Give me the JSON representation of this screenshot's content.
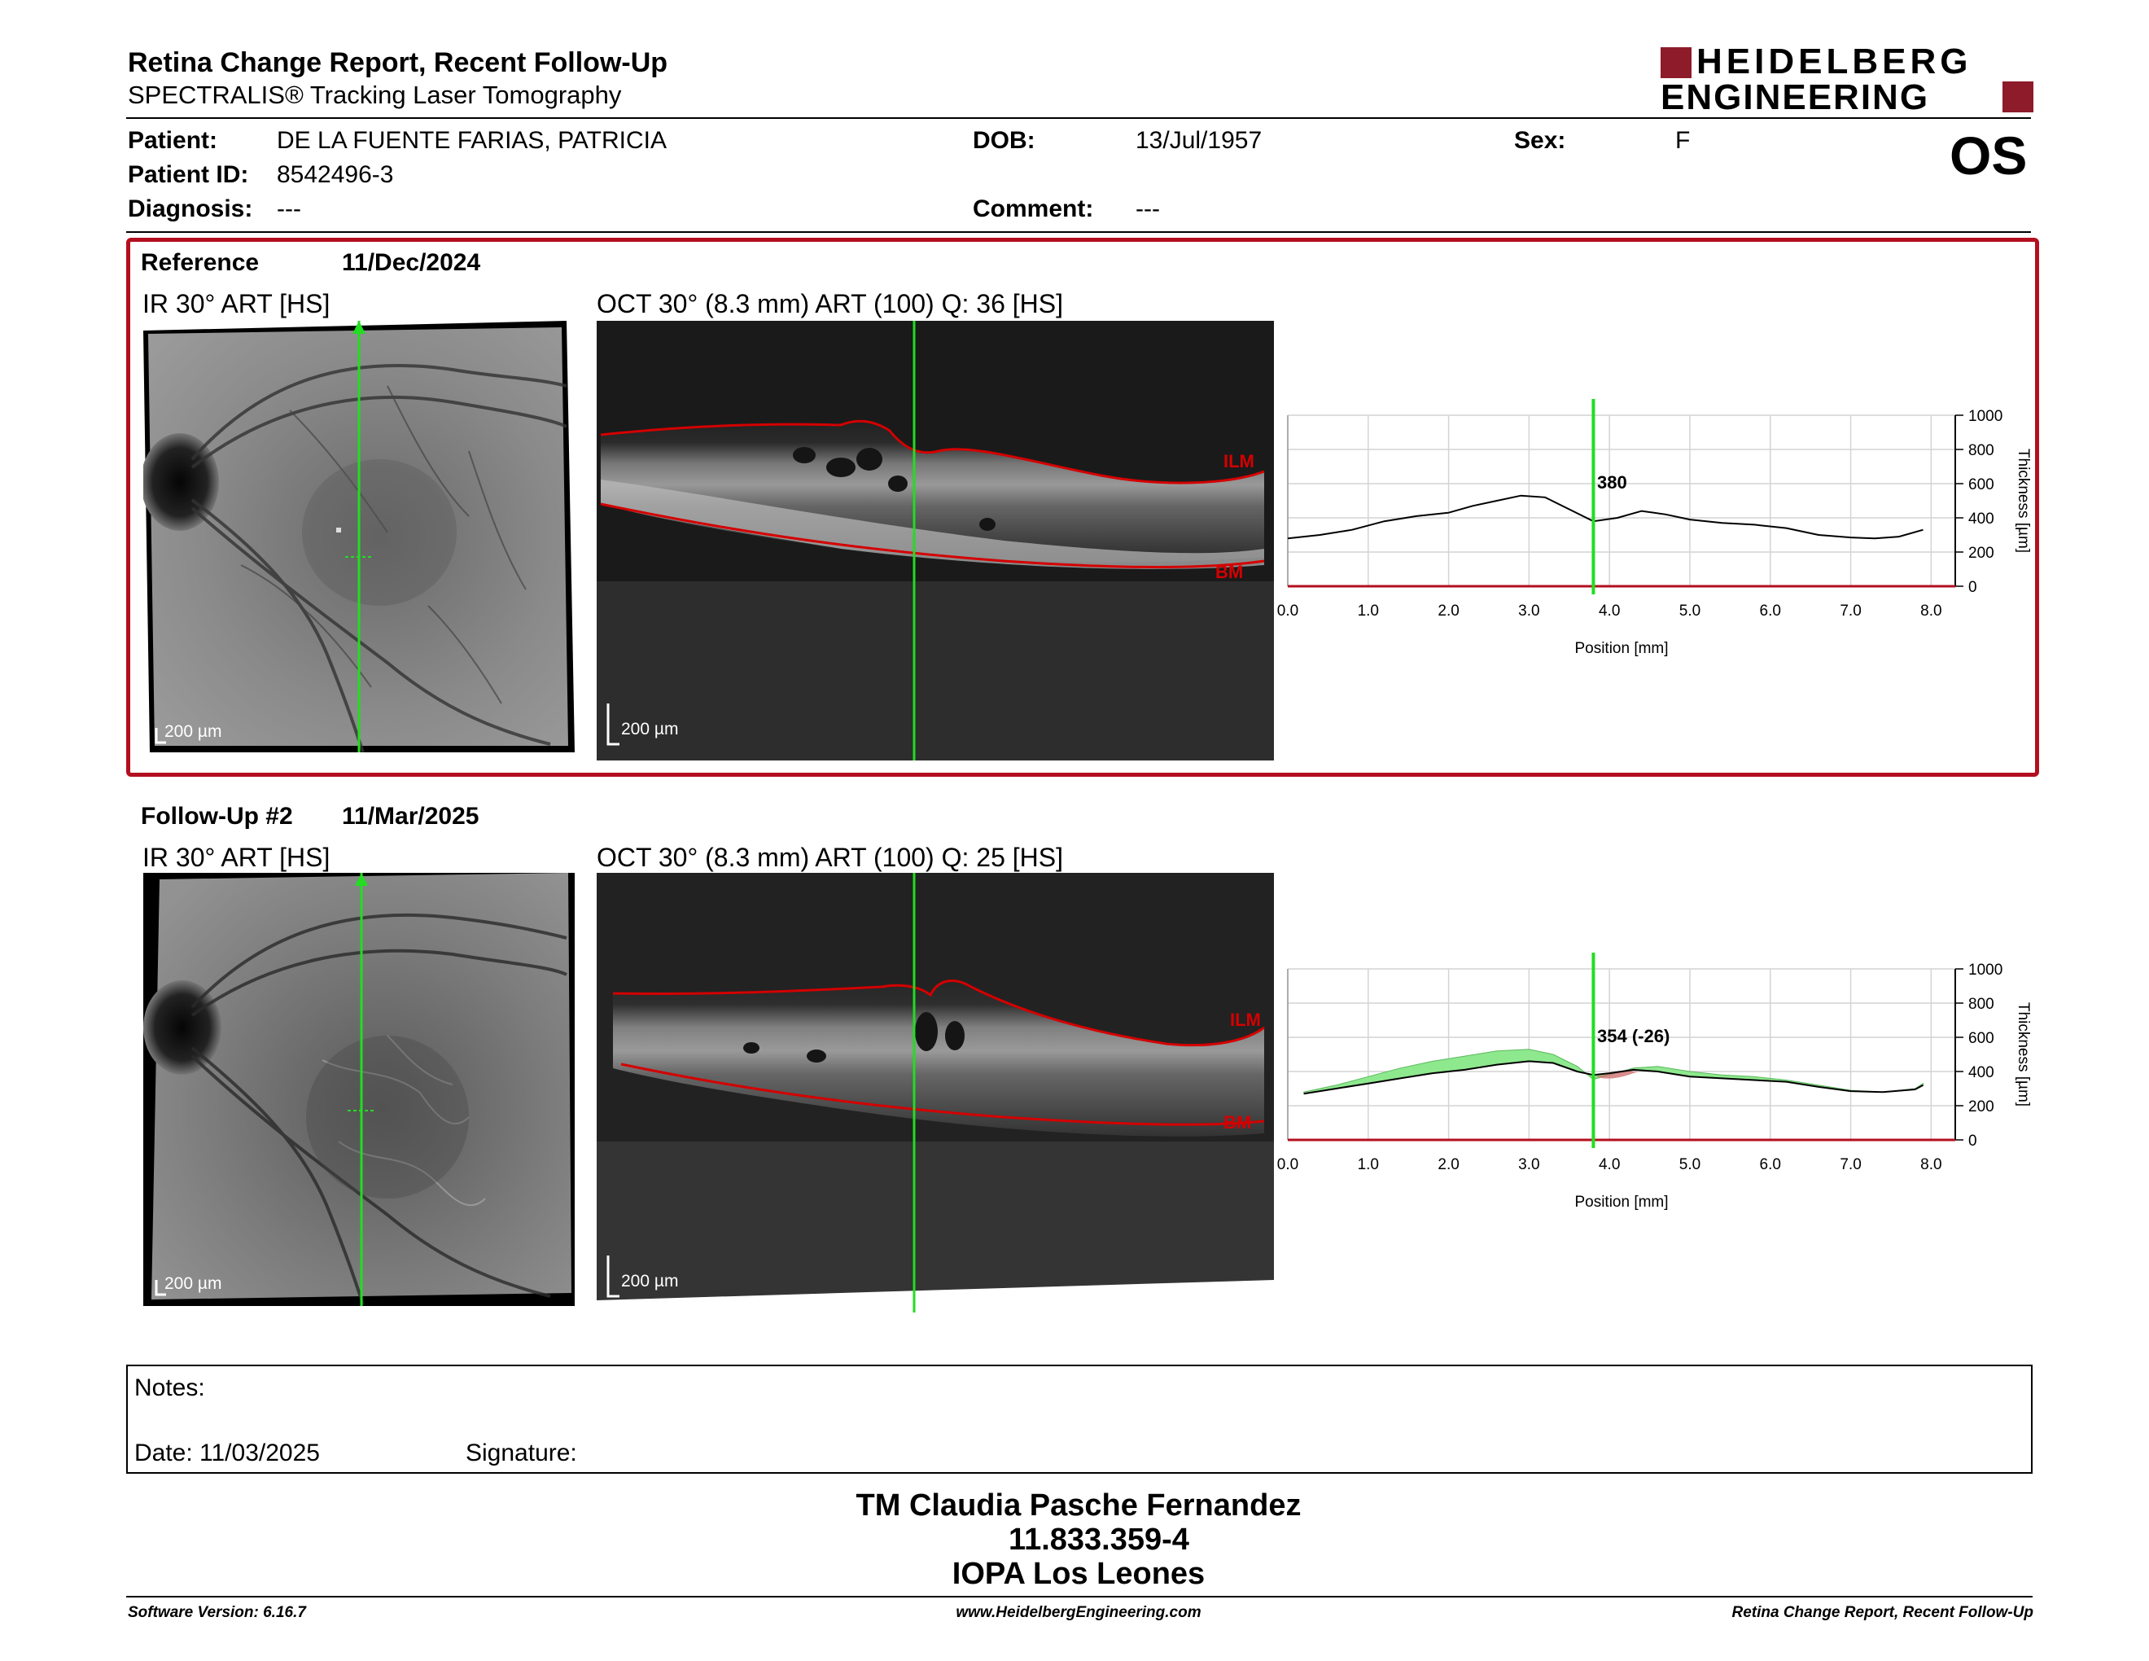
{
  "header": {
    "title": "Retina Change Report, Recent Follow-Up",
    "subtitle": "SPECTRALIS® Tracking Laser Tomography",
    "logo_line1": "HEIDELBERG",
    "logo_line2": "ENGINEERING",
    "eye": "OS"
  },
  "patient": {
    "patient_label": "Patient:",
    "patient_value": "DE LA FUENTE FARIAS, PATRICIA",
    "id_label": "Patient ID:",
    "id_value": "8542496-3",
    "diagnosis_label": "Diagnosis:",
    "diagnosis_value": "---",
    "dob_label": "DOB:",
    "dob_value": "13/Jul/1957",
    "comment_label": "Comment:",
    "comment_value": "---",
    "sex_label": "Sex:",
    "sex_value": "F"
  },
  "reference": {
    "label": "Reference",
    "date": "11/Dec/2024",
    "ir_title": "IR 30° ART [HS]",
    "oct_title": "OCT 30° (8.3 mm) ART (100) Q: 36 [HS]",
    "scale": "200 µm",
    "ilm": "ILM",
    "bm": "BM",
    "value_label": "380"
  },
  "followup": {
    "label": "Follow-Up #2",
    "date": "11/Mar/2025",
    "ir_title": "IR 30° ART [HS]",
    "oct_title": "OCT 30° (8.3 mm) ART (100) Q: 25 [HS]",
    "scale": "200 µm",
    "ilm": "ILM",
    "bm": "BM",
    "value_label": "354 (-26)"
  },
  "chart_data": [
    {
      "type": "line",
      "title": "",
      "xlabel": "Position [mm]",
      "ylabel": "Thickness [µm]",
      "xlim": [
        0,
        8.3
      ],
      "ylim": [
        0,
        1000
      ],
      "xticks": [
        "0.0",
        "1.0",
        "2.0",
        "3.0",
        "4.0",
        "5.0",
        "6.0",
        "7.0",
        "8.0"
      ],
      "yticks": [
        "0",
        "200",
        "400",
        "600",
        "800",
        "1000"
      ],
      "grid": true,
      "cursor_x": 3.8,
      "series": [
        {
          "values_x": [
            0.0,
            0.4,
            0.8,
            1.2,
            1.6,
            2.0,
            2.3,
            2.6,
            2.9,
            3.2,
            3.5,
            3.8,
            4.1,
            4.4,
            4.7,
            5.0,
            5.4,
            5.8,
            6.2,
            6.6,
            7.0,
            7.3,
            7.6,
            7.9
          ],
          "values_y": [
            280,
            300,
            330,
            380,
            410,
            430,
            470,
            500,
            530,
            520,
            450,
            380,
            400,
            440,
            420,
            390,
            370,
            360,
            340,
            300,
            285,
            280,
            290,
            330
          ]
        }
      ]
    },
    {
      "type": "line",
      "title": "",
      "xlabel": "Position [mm]",
      "ylabel": "Thickness [µm]",
      "xlim": [
        0,
        8.3
      ],
      "ylim": [
        0,
        1000
      ],
      "xticks": [
        "0.0",
        "1.0",
        "2.0",
        "3.0",
        "4.0",
        "5.0",
        "6.0",
        "7.0",
        "8.0"
      ],
      "yticks": [
        "0",
        "200",
        "400",
        "600",
        "800",
        "1000"
      ],
      "grid": true,
      "cursor_x": 3.8,
      "series": [
        {
          "values_x": [
            0.2,
            0.6,
            1.0,
            1.4,
            1.8,
            2.2,
            2.6,
            3.0,
            3.3,
            3.6,
            3.8,
            4.0,
            4.3,
            4.6,
            5.0,
            5.4,
            5.8,
            6.2,
            6.6,
            7.0,
            7.4,
            7.8,
            7.9
          ],
          "values_y": [
            280,
            320,
            370,
            420,
            460,
            490,
            520,
            530,
            500,
            430,
            354,
            380,
            420,
            430,
            400,
            380,
            370,
            350,
            320,
            290,
            280,
            300,
            330
          ]
        },
        {
          "values_x": [
            0.2,
            0.6,
            1.0,
            1.4,
            1.8,
            2.2,
            2.6,
            3.0,
            3.3,
            3.6,
            3.8,
            4.0,
            4.3,
            4.6,
            5.0,
            5.4,
            5.8,
            6.2,
            6.6,
            7.0,
            7.4,
            7.8,
            7.9
          ],
          "values_y": [
            270,
            300,
            330,
            360,
            390,
            410,
            440,
            460,
            450,
            400,
            380,
            390,
            410,
            400,
            370,
            360,
            350,
            340,
            310,
            285,
            280,
            295,
            320
          ]
        }
      ]
    }
  ],
  "notes": {
    "notes_label": "Notes:",
    "date_label": "Date: 11/03/2025",
    "signature_label": "Signature:"
  },
  "stamp": {
    "line1": "TM Claudia Pasche Fernandez",
    "line2": "11.833.359-4",
    "line3": "IOPA Los Leones"
  },
  "footer": {
    "left": "Software Version: 6.16.7",
    "center": "www.HeidelbergEngineering.com",
    "right": "Retina Change Report, Recent Follow-Up"
  },
  "colors": {
    "accent_red": "#b30f1f",
    "cursor_green": "#22dd22",
    "increase_green": "#8ee88e",
    "decrease_red": "#d07070"
  }
}
